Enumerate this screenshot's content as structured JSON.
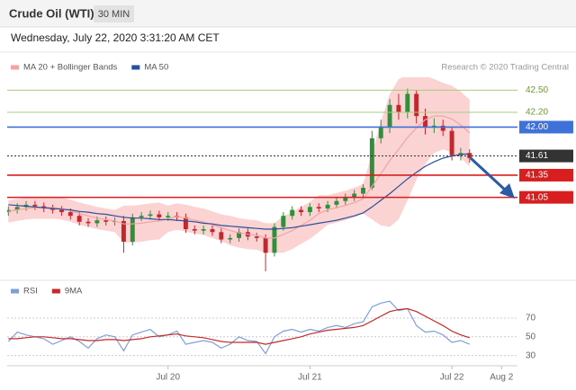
{
  "header": {
    "title": "Crude Oil (WTI)",
    "interval": "30 MIN",
    "timestamp": "Wednesday, July 22, 2020 3:31:20 AM CET",
    "source": "Research © 2020 Trading Central"
  },
  "chart_data": [
    {
      "type": "candlestick",
      "xlim": [
        -27.2,
        59.1
      ],
      "ylim": [
        40.0,
        42.65
      ],
      "up_color": "#2f8f3a",
      "down_color": "#c0282d",
      "x": [
        -27,
        -25.5,
        -24,
        -22.5,
        -21,
        -19.5,
        -18,
        -16.5,
        -15,
        -13.5,
        -12,
        -10.5,
        -9,
        -7.5,
        -6,
        -4.5,
        -3,
        -1.5,
        0,
        1.5,
        3,
        4.5,
        6,
        7.5,
        9,
        10.5,
        12,
        13.5,
        15,
        16.5,
        18,
        19.5,
        21,
        22.5,
        24,
        25.5,
        27,
        28.5,
        30,
        31.5,
        33,
        34.5,
        36,
        37.5,
        39,
        40.5,
        42,
        43.5,
        45,
        46.5,
        48,
        49.5,
        51
      ],
      "open": [
        40.85,
        40.88,
        40.92,
        40.95,
        40.93,
        40.9,
        40.88,
        40.85,
        40.8,
        40.72,
        40.7,
        40.74,
        40.72,
        40.73,
        40.45,
        40.78,
        40.8,
        40.82,
        40.78,
        40.8,
        40.78,
        40.62,
        40.6,
        40.62,
        40.58,
        40.48,
        40.5,
        40.58,
        40.52,
        40.5,
        40.3,
        40.65,
        40.8,
        40.88,
        40.85,
        40.92,
        40.9,
        40.95,
        41.0,
        41.05,
        41.1,
        41.18,
        41.85,
        42.0,
        42.3,
        42.2,
        42.45,
        42.15,
        42.0,
        42.02,
        41.95,
        41.62,
        41.65
      ],
      "high": [
        40.93,
        40.97,
        41.0,
        41.0,
        40.98,
        40.95,
        40.93,
        40.9,
        40.85,
        40.77,
        40.79,
        40.79,
        40.78,
        40.8,
        40.83,
        40.85,
        40.87,
        40.87,
        40.85,
        40.85,
        40.83,
        40.67,
        40.67,
        40.67,
        40.63,
        40.55,
        40.63,
        40.63,
        40.57,
        40.55,
        40.7,
        40.85,
        40.93,
        40.93,
        40.97,
        40.97,
        41.0,
        41.05,
        41.1,
        41.15,
        41.23,
        41.95,
        42.1,
        42.38,
        42.45,
        42.52,
        42.5,
        42.25,
        42.12,
        42.1,
        42.0,
        41.72,
        41.7
      ],
      "low": [
        40.8,
        40.83,
        40.87,
        40.88,
        40.85,
        40.83,
        40.8,
        40.75,
        40.67,
        40.65,
        40.65,
        40.67,
        40.67,
        40.3,
        40.4,
        40.73,
        40.75,
        40.73,
        40.73,
        40.73,
        40.57,
        40.55,
        40.55,
        40.53,
        40.43,
        40.43,
        40.45,
        40.47,
        40.45,
        40.05,
        40.25,
        40.6,
        40.75,
        40.8,
        40.8,
        40.85,
        40.85,
        40.9,
        40.95,
        41.0,
        41.05,
        41.15,
        41.78,
        41.92,
        42.1,
        42.12,
        42.05,
        41.9,
        41.92,
        41.88,
        41.55,
        41.55,
        41.52
      ],
      "close": [
        40.88,
        40.92,
        40.95,
        40.93,
        40.9,
        40.88,
        40.85,
        40.8,
        40.72,
        40.7,
        40.74,
        40.72,
        40.73,
        40.45,
        40.78,
        40.8,
        40.82,
        40.78,
        40.8,
        40.78,
        40.62,
        40.6,
        40.62,
        40.58,
        40.48,
        40.5,
        40.58,
        40.52,
        40.5,
        40.3,
        40.65,
        40.8,
        40.88,
        40.85,
        40.92,
        40.9,
        40.95,
        41.0,
        41.05,
        41.1,
        41.18,
        41.85,
        42.0,
        42.3,
        42.2,
        42.45,
        42.15,
        42.0,
        42.02,
        41.95,
        41.62,
        41.65,
        41.58
      ],
      "series": [
        {
          "name": "MA 20 + Bollinger Bands",
          "color": "#f3a3a3",
          "band_color": "#fbd3d3",
          "values": [
            40.86,
            40.88,
            40.9,
            40.91,
            40.91,
            40.91,
            40.9,
            40.87,
            40.83,
            40.8,
            40.77,
            40.75,
            40.73,
            40.69,
            40.69,
            40.7,
            40.72,
            40.73,
            40.76,
            40.79,
            40.77,
            40.74,
            40.72,
            40.68,
            40.64,
            40.6,
            40.57,
            40.55,
            40.54,
            40.5,
            40.5,
            40.55,
            40.6,
            40.67,
            40.74,
            40.83,
            40.88,
            40.91,
            40.94,
            40.98,
            41.03,
            41.2,
            41.37,
            41.55,
            41.7,
            41.86,
            41.99,
            42.1,
            42.15,
            42.15,
            42.11,
            42.03,
            41.92
          ],
          "upper": [
            41.01,
            41.03,
            41.05,
            41.06,
            41.06,
            41.06,
            41.05,
            41.02,
            40.98,
            40.95,
            40.92,
            40.9,
            40.88,
            40.94,
            40.94,
            40.95,
            40.97,
            40.98,
            40.94,
            40.97,
            40.95,
            40.92,
            40.9,
            40.86,
            40.82,
            40.8,
            40.77,
            40.75,
            40.74,
            40.7,
            40.7,
            40.8,
            40.85,
            40.92,
            40.99,
            41.08,
            41.08,
            41.11,
            41.14,
            41.18,
            41.23,
            41.65,
            42.07,
            42.45,
            42.65,
            42.71,
            42.69,
            42.7,
            42.65,
            42.6,
            42.56,
            42.48,
            42.37
          ],
          "lower": [
            40.71,
            40.73,
            40.75,
            40.76,
            40.76,
            40.76,
            40.75,
            40.72,
            40.68,
            40.65,
            40.62,
            40.6,
            40.58,
            40.44,
            40.44,
            40.45,
            40.47,
            40.48,
            40.58,
            40.61,
            40.59,
            40.56,
            40.54,
            40.5,
            40.46,
            40.4,
            40.37,
            40.35,
            40.34,
            40.3,
            40.3,
            40.3,
            40.35,
            40.42,
            40.49,
            40.58,
            40.68,
            40.71,
            40.74,
            40.78,
            40.83,
            40.75,
            40.67,
            40.65,
            40.75,
            41.01,
            41.29,
            41.5,
            41.65,
            41.7,
            41.66,
            41.58,
            41.47
          ]
        },
        {
          "name": "MA 50",
          "color": "#2a4f9a",
          "values": [
            40.95,
            40.94,
            40.93,
            40.92,
            40.91,
            40.9,
            40.89,
            40.88,
            40.86,
            40.85,
            40.83,
            40.82,
            40.8,
            40.78,
            40.77,
            40.77,
            40.76,
            40.75,
            40.75,
            40.74,
            40.73,
            40.72,
            40.7,
            40.69,
            40.67,
            40.66,
            40.65,
            40.64,
            40.63,
            40.62,
            40.62,
            40.63,
            40.64,
            40.66,
            40.68,
            40.7,
            40.72,
            40.74,
            40.77,
            40.8,
            40.84,
            40.92,
            41.01,
            41.1,
            41.2,
            41.3,
            41.39,
            41.47,
            41.53,
            41.58,
            41.61,
            41.63,
            41.64
          ]
        }
      ],
      "levels": [
        {
          "value": 42.5,
          "label": "42.50",
          "color": "#a9cc7c",
          "text_color": "#6e9a32",
          "boxed": false
        },
        {
          "value": 42.2,
          "label": "42.20",
          "color": "#a9cc7c",
          "text_color": "#6e9a32",
          "boxed": false
        },
        {
          "value": 42.0,
          "label": "42.00",
          "color": "#3f72d8",
          "text_color": "#ffffff",
          "boxed": true
        },
        {
          "value": 41.61,
          "label": "41.61",
          "color": "#333333",
          "text_color": "#ffffff",
          "boxed": true,
          "dotted": true
        },
        {
          "value": 41.35,
          "label": "41.35",
          "color": "#d81e1e",
          "text_color": "#ffffff",
          "boxed": true
        },
        {
          "value": 41.05,
          "label": "41.05",
          "color": "#d81e1e",
          "text_color": "#ffffff",
          "boxed": true
        }
      ]
    },
    {
      "type": "line",
      "xlim": [
        -27.2,
        59.1
      ],
      "ylim": [
        21,
        93
      ],
      "yticks": [
        30,
        50,
        70
      ],
      "xticks": [
        {
          "value": 0,
          "label": "Jul 20"
        },
        {
          "value": 24,
          "label": "Jul 21"
        },
        {
          "value": 48,
          "label": "Jul 22"
        },
        {
          "value": 56.4,
          "label": "Aug 2"
        }
      ],
      "x": [
        -27,
        -25.5,
        -24,
        -22.5,
        -21,
        -19.5,
        -18,
        -16.5,
        -15,
        -13.5,
        -12,
        -10.5,
        -9,
        -7.5,
        -6,
        -4.5,
        -3,
        -1.5,
        0,
        1.5,
        3,
        4.5,
        6,
        7.5,
        9,
        10.5,
        12,
        13.5,
        15,
        16.5,
        18,
        19.5,
        21,
        22.5,
        24,
        25.5,
        27,
        28.5,
        30,
        31.5,
        33,
        34.5,
        36,
        37.5,
        39,
        40.5,
        42,
        43.5,
        45,
        46.5,
        48,
        49.5,
        51
      ],
      "series": [
        {
          "name": "RSI",
          "color": "#7f9fd8",
          "values": [
            45,
            55,
            52,
            50,
            48,
            42,
            46,
            50,
            45,
            38,
            48,
            52,
            50,
            35,
            52,
            55,
            58,
            50,
            52,
            56,
            42,
            44,
            46,
            44,
            38,
            42,
            50,
            46,
            45,
            32,
            50,
            56,
            58,
            55,
            58,
            56,
            60,
            62,
            60,
            64,
            66,
            82,
            86,
            88,
            78,
            80,
            62,
            55,
            56,
            52,
            44,
            46,
            42
          ]
        },
        {
          "name": "9MA",
          "color": "#c62828",
          "values": [
            48,
            48,
            49,
            50,
            50,
            49,
            48,
            48,
            47,
            46,
            46,
            47,
            47,
            46,
            47,
            48,
            50,
            51,
            52,
            53,
            51,
            50,
            49,
            47,
            45,
            44,
            44,
            44,
            44,
            42,
            44,
            46,
            48,
            50,
            53,
            55,
            57,
            58,
            59,
            60,
            62,
            67,
            72,
            77,
            79,
            80,
            77,
            72,
            67,
            62,
            56,
            52,
            49
          ]
        }
      ]
    }
  ]
}
